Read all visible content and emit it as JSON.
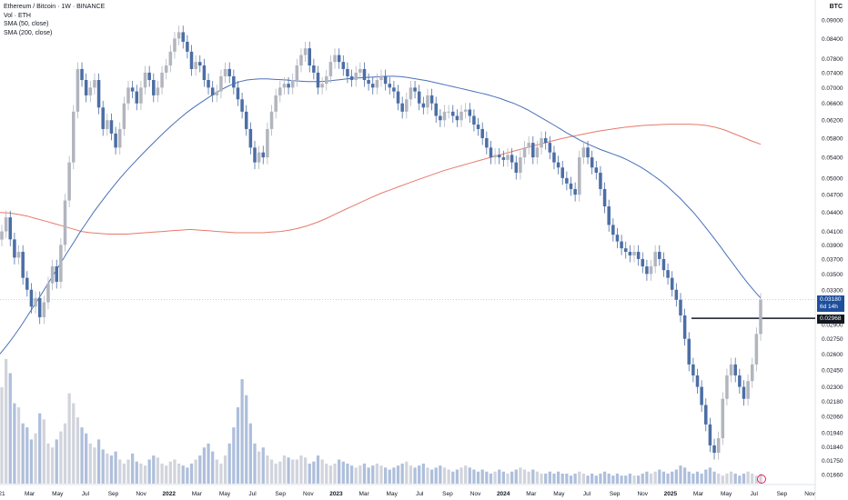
{
  "header": {
    "title": "Ethereum / Bitcoin · 1W · BINANCE",
    "indicators": [
      "Vol · ETH",
      "SMA (50, close)",
      "SMA (200, close)"
    ],
    "currency": "BTC"
  },
  "price_labels": {
    "current": "0.03180",
    "countdown": "6d 14h",
    "marked_level": "0.02968"
  },
  "colors": {
    "bull": "#b2b5be",
    "bear": "#4c6ea5",
    "sma50": "#4a70b8",
    "sma200": "#e57a6b",
    "vol_bull": "#d1d4dc",
    "vol_bear": "#aebfdc",
    "hline": "#131722",
    "price_tag": "#1e4f9c",
    "flash": "#e91e63"
  },
  "chart_data": {
    "type": "candlestick",
    "y_axis_ticks": [
      "0.09000",
      "0.08400",
      "0.07800",
      "0.07400",
      "0.07000",
      "0.06600",
      "0.06200",
      "0.05800",
      "0.05400",
      "0.05000",
      "0.04700",
      "0.04400",
      "0.04100",
      "0.03900",
      "0.03700",
      "0.03500",
      "0.03300",
      "0.03100",
      "0.02900",
      "0.02750",
      "0.02600",
      "0.02450",
      "0.02300",
      "0.02180",
      "0.02060",
      "0.01940",
      "0.01840",
      "0.01750",
      "0.01660"
    ],
    "x_axis_labels": [
      "21",
      "Mar",
      "May",
      "Jul",
      "Sep",
      "Nov",
      "2022",
      "Mar",
      "May",
      "Jul",
      "Sep",
      "Nov",
      "2023",
      "Mar",
      "May",
      "Jul",
      "Sep",
      "Nov",
      "2024",
      "Mar",
      "May",
      "Jul",
      "Sep",
      "Nov",
      "2025",
      "Mar",
      "May",
      "Jul",
      "Sep",
      "Nov"
    ],
    "horizontal_line": 0.02968,
    "current_price": 0.0318,
    "closes": [
      0.041,
      0.0432,
      0.0398,
      0.0372,
      0.038,
      0.0345,
      0.033,
      0.031,
      0.032,
      0.0298,
      0.0315,
      0.0338,
      0.036,
      0.034,
      0.039,
      0.046,
      0.053,
      0.064,
      0.075,
      0.072,
      0.068,
      0.07,
      0.072,
      0.065,
      0.06,
      0.062,
      0.059,
      0.056,
      0.06,
      0.066,
      0.07,
      0.069,
      0.066,
      0.07,
      0.074,
      0.072,
      0.068,
      0.07,
      0.074,
      0.076,
      0.08,
      0.084,
      0.086,
      0.083,
      0.08,
      0.075,
      0.077,
      0.076,
      0.072,
      0.07,
      0.068,
      0.069,
      0.073,
      0.075,
      0.073,
      0.07,
      0.067,
      0.064,
      0.06,
      0.056,
      0.053,
      0.055,
      0.054,
      0.06,
      0.064,
      0.068,
      0.07,
      0.071,
      0.07,
      0.072,
      0.076,
      0.079,
      0.081,
      0.076,
      0.074,
      0.07,
      0.071,
      0.073,
      0.077,
      0.079,
      0.077,
      0.075,
      0.073,
      0.072,
      0.074,
      0.075,
      0.072,
      0.071,
      0.07,
      0.072,
      0.073,
      0.071,
      0.07,
      0.069,
      0.066,
      0.064,
      0.067,
      0.07,
      0.069,
      0.066,
      0.065,
      0.068,
      0.066,
      0.063,
      0.062,
      0.064,
      0.064,
      0.063,
      0.062,
      0.064,
      0.0645,
      0.063,
      0.061,
      0.06,
      0.058,
      0.056,
      0.054,
      0.0545,
      0.054,
      0.0535,
      0.0545,
      0.053,
      0.051,
      0.054,
      0.056,
      0.057,
      0.054,
      0.056,
      0.058,
      0.057,
      0.055,
      0.053,
      0.052,
      0.05,
      0.049,
      0.048,
      0.047,
      0.054,
      0.056,
      0.054,
      0.052,
      0.051,
      0.048,
      0.045,
      0.042,
      0.0405,
      0.0395,
      0.0385,
      0.038,
      0.0375,
      0.038,
      0.037,
      0.036,
      0.035,
      0.036,
      0.038,
      0.037,
      0.0355,
      0.0345,
      0.033,
      0.0318,
      0.03,
      0.0275,
      0.025,
      0.024,
      0.023,
      0.0215,
      0.02,
      0.0185,
      0.018,
      0.019,
      0.022,
      0.024,
      0.025,
      0.024,
      0.023,
      0.022,
      0.0235,
      0.025,
      0.028,
      0.0318
    ],
    "sma50": [
      0.026,
      0.0268,
      0.0277,
      0.0287,
      0.0298,
      0.031,
      0.0322,
      0.0335,
      0.0349,
      0.0363,
      0.0378,
      0.0393,
      0.0409,
      0.0424,
      0.044,
      0.0455,
      0.047,
      0.0485,
      0.05,
      0.0514,
      0.0528,
      0.0542,
      0.0556,
      0.057,
      0.0584,
      0.0598,
      0.0612,
      0.0625,
      0.0638,
      0.065,
      0.0661,
      0.0672,
      0.0683,
      0.0693,
      0.0702,
      0.071,
      0.0716,
      0.072,
      0.0722,
      0.0723,
      0.0723,
      0.0722,
      0.0721,
      0.072,
      0.0718,
      0.0717,
      0.0716,
      0.0716,
      0.0716,
      0.0717,
      0.0719,
      0.0721,
      0.0723,
      0.0725,
      0.0726,
      0.0727,
      0.0728,
      0.0729,
      0.073,
      0.073,
      0.0729,
      0.0727,
      0.0724,
      0.0721,
      0.0718,
      0.0714,
      0.071,
      0.0706,
      0.0702,
      0.0698,
      0.0694,
      0.069,
      0.0686,
      0.0682,
      0.0677,
      0.0672,
      0.0666,
      0.066,
      0.0653,
      0.0645,
      0.0636,
      0.0627,
      0.0618,
      0.0609,
      0.06,
      0.0591,
      0.0583,
      0.0575,
      0.0568,
      0.0562,
      0.0556,
      0.0551,
      0.0546,
      0.0541,
      0.0535,
      0.0528,
      0.0521,
      0.0513,
      0.0504,
      0.0495,
      0.0485,
      0.0474,
      0.0463,
      0.0451,
      0.0439,
      0.0426,
      0.0413,
      0.04,
      0.0387,
      0.0374,
      0.0362,
      0.035,
      0.0339,
      0.0329,
      0.032
    ],
    "sma200": [
      0.044,
      0.0439,
      0.0437,
      0.0434,
      0.043,
      0.0426,
      0.0422,
      0.0418,
      0.0414,
      0.041,
      0.0408,
      0.0407,
      0.0406,
      0.0406,
      0.0406,
      0.0407,
      0.0408,
      0.0409,
      0.041,
      0.0411,
      0.0412,
      0.0413,
      0.0412,
      0.0411,
      0.041,
      0.0409,
      0.0408,
      0.0408,
      0.0408,
      0.0408,
      0.0409,
      0.041,
      0.0412,
      0.0415,
      0.0419,
      0.0424,
      0.043,
      0.0437,
      0.0444,
      0.0451,
      0.0458,
      0.0465,
      0.0472,
      0.0478,
      0.0484,
      0.049,
      0.0496,
      0.0502,
      0.0508,
      0.0514,
      0.0519,
      0.0524,
      0.0529,
      0.0534,
      0.0539,
      0.0544,
      0.0549,
      0.0554,
      0.0559,
      0.0564,
      0.0569,
      0.0574,
      0.0579,
      0.0583,
      0.0587,
      0.0591,
      0.0595,
      0.0598,
      0.0601,
      0.0604,
      0.0606,
      0.0608,
      0.0609,
      0.061,
      0.0611,
      0.0611,
      0.0611,
      0.061,
      0.0608,
      0.0604,
      0.0598,
      0.059,
      0.0582,
      0.0574,
      0.0567
    ],
    "volumes": [
      0.48,
      0.62,
      0.55,
      0.4,
      0.38,
      0.3,
      0.28,
      0.22,
      0.25,
      0.35,
      0.32,
      0.2,
      0.18,
      0.22,
      0.26,
      0.3,
      0.45,
      0.4,
      0.33,
      0.28,
      0.25,
      0.2,
      0.18,
      0.22,
      0.17,
      0.15,
      0.14,
      0.16,
      0.12,
      0.1,
      0.12,
      0.15,
      0.11,
      0.1,
      0.09,
      0.12,
      0.14,
      0.13,
      0.1,
      0.09,
      0.11,
      0.12,
      0.1,
      0.09,
      0.08,
      0.1,
      0.12,
      0.14,
      0.18,
      0.2,
      0.16,
      0.12,
      0.1,
      0.14,
      0.2,
      0.28,
      0.38,
      0.52,
      0.44,
      0.3,
      0.2,
      0.16,
      0.18,
      0.14,
      0.12,
      0.1,
      0.11,
      0.14,
      0.13,
      0.12,
      0.12,
      0.14,
      0.13,
      0.1,
      0.11,
      0.14,
      0.12,
      0.1,
      0.09,
      0.1,
      0.12,
      0.11,
      0.1,
      0.09,
      0.08,
      0.09,
      0.1,
      0.08,
      0.09,
      0.1,
      0.09,
      0.08,
      0.07,
      0.08,
      0.09,
      0.1,
      0.11,
      0.09,
      0.08,
      0.09,
      0.1,
      0.08,
      0.07,
      0.08,
      0.09,
      0.08,
      0.07,
      0.06,
      0.07,
      0.08,
      0.09,
      0.08,
      0.07,
      0.06,
      0.07,
      0.06,
      0.05,
      0.06,
      0.07,
      0.06,
      0.05,
      0.06,
      0.07,
      0.08,
      0.07,
      0.06,
      0.07,
      0.06,
      0.05,
      0.05,
      0.06,
      0.05,
      0.06,
      0.05,
      0.05,
      0.04,
      0.05,
      0.06,
      0.05,
      0.04,
      0.05,
      0.04,
      0.05,
      0.06,
      0.05,
      0.04,
      0.05,
      0.04,
      0.04,
      0.05,
      0.04,
      0.04,
      0.05,
      0.06,
      0.05,
      0.06,
      0.07,
      0.06,
      0.05,
      0.06,
      0.07,
      0.09,
      0.08,
      0.06,
      0.05,
      0.06,
      0.05,
      0.07,
      0.08,
      0.06,
      0.05,
      0.04,
      0.05,
      0.06,
      0.05,
      0.04,
      0.05,
      0.06,
      0.05,
      0.04,
      0.05,
      0.05
    ]
  }
}
